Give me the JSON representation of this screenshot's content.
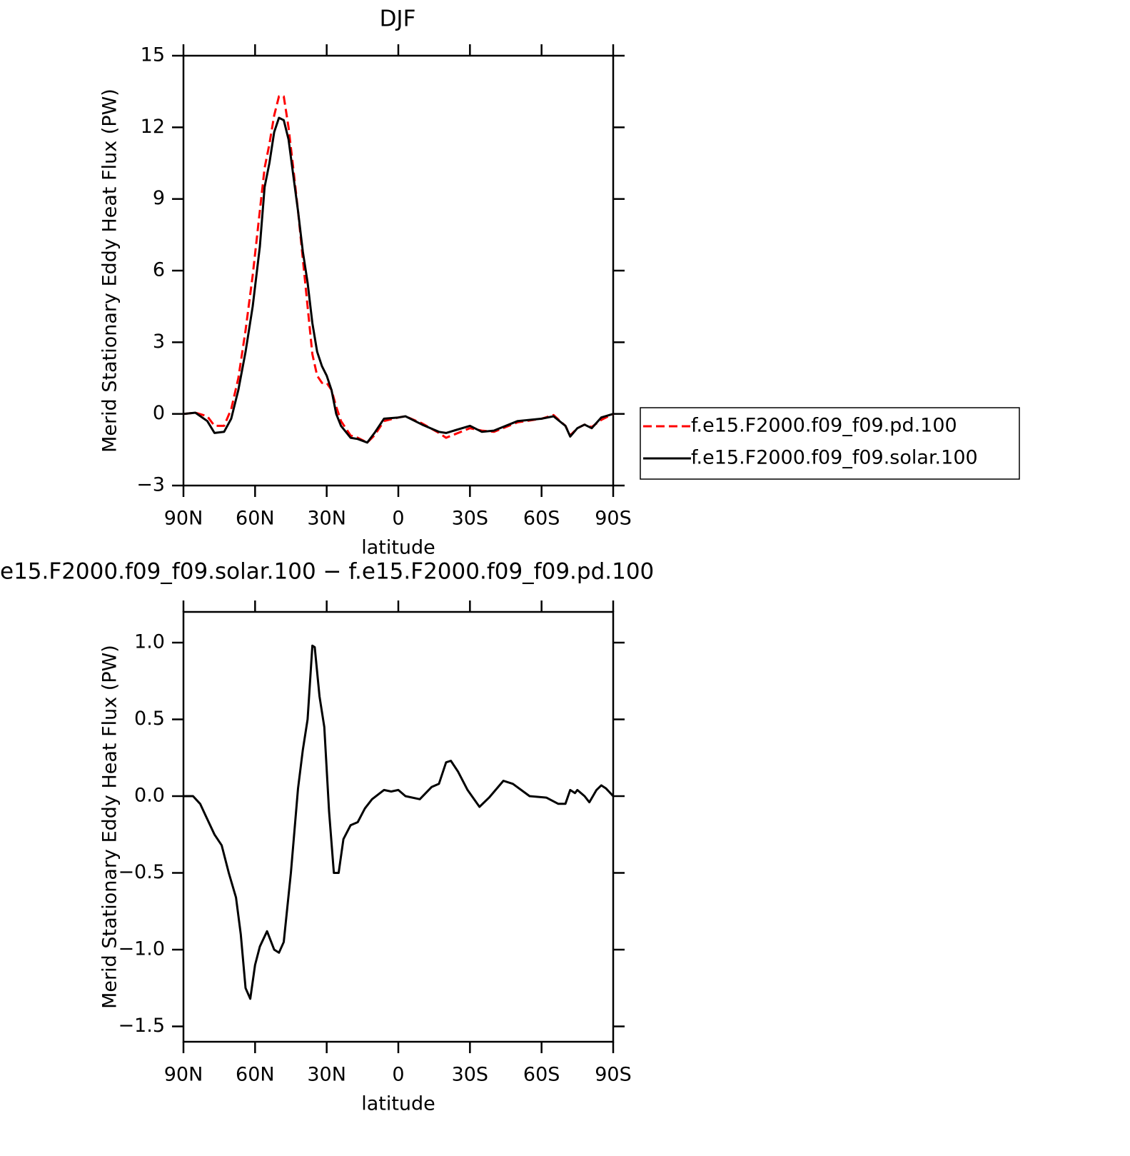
{
  "chart_data": [
    {
      "type": "line",
      "title": "DJF",
      "xlabel": "latitude",
      "ylabel": "Merid Stationary Eddy Heat Flux (PW)",
      "x": [
        90,
        85,
        80,
        77,
        73,
        70,
        67,
        64,
        61,
        58,
        56,
        54,
        52,
        50,
        48,
        46,
        44,
        42,
        40,
        38,
        36,
        34,
        32,
        30,
        28,
        26,
        24,
        20,
        17,
        13,
        10,
        6,
        0,
        -3,
        -10,
        -17,
        -20,
        -30,
        -35,
        -40,
        -50,
        -60,
        -65,
        -70,
        -72,
        -75,
        -78,
        -81,
        -85,
        -90
      ],
      "series": [
        {
          "name": "f.e15.F2000.f09_f09.pd.100",
          "color": "#ff0000",
          "line_style": "dashed",
          "values": [
            0,
            0.05,
            -0.1,
            -0.5,
            -0.5,
            0.2,
            1.5,
            3.5,
            5.8,
            8.5,
            10.3,
            11.3,
            12.5,
            13.3,
            13.3,
            12.0,
            10.3,
            8.5,
            6.5,
            4.5,
            2.5,
            1.6,
            1.3,
            1.3,
            1.0,
            0.3,
            -0.3,
            -0.9,
            -1.0,
            -1.2,
            -0.9,
            -0.3,
            -0.15,
            -0.1,
            -0.4,
            -0.8,
            -1.0,
            -0.6,
            -0.7,
            -0.75,
            -0.35,
            -0.2,
            -0.05,
            -0.5,
            -0.9,
            -0.6,
            -0.45,
            -0.55,
            -0.25,
            0
          ]
        },
        {
          "name": "f.e15.F2000.f09_f09.solar.100",
          "color": "#000000",
          "line_style": "solid",
          "values": [
            0,
            0.05,
            -0.3,
            -0.8,
            -0.75,
            -0.2,
            1.0,
            2.6,
            4.5,
            7.0,
            9.5,
            10.5,
            11.8,
            12.4,
            12.3,
            11.5,
            10.0,
            8.5,
            6.8,
            5.5,
            3.8,
            2.6,
            2.0,
            1.6,
            1.0,
            0.0,
            -0.5,
            -1.0,
            -1.05,
            -1.2,
            -0.8,
            -0.2,
            -0.15,
            -0.1,
            -0.45,
            -0.75,
            -0.8,
            -0.5,
            -0.75,
            -0.7,
            -0.3,
            -0.2,
            -0.1,
            -0.5,
            -0.95,
            -0.6,
            -0.45,
            -0.6,
            -0.15,
            0
          ]
        }
      ],
      "xlim": [
        90,
        -90
      ],
      "xticks": [
        {
          "value": 90,
          "label": "90N"
        },
        {
          "value": 60,
          "label": "60N"
        },
        {
          "value": 30,
          "label": "30N"
        },
        0,
        {
          "value": -30,
          "label": "30S"
        },
        {
          "value": -60,
          "label": "60S"
        },
        {
          "value": -90,
          "label": "90S"
        }
      ],
      "ylim": [
        -3,
        15
      ],
      "yticks": [
        {
          "value": -3,
          "label": "−3"
        },
        0,
        3,
        6,
        9,
        12,
        15
      ],
      "legend": "right"
    },
    {
      "type": "line",
      "title": "e15.F2000.f09_f09.solar.100 − f.e15.F2000.f09_f09.pd.100",
      "xlabel": "latitude",
      "ylabel": "Merid Stationary Eddy Heat Flux (PW)",
      "x": [
        90,
        86,
        83,
        80,
        77,
        74,
        71,
        68,
        66,
        64,
        62,
        60,
        58,
        55,
        52,
        50,
        48,
        45,
        42,
        40,
        38,
        36,
        35,
        33,
        31,
        29,
        27,
        25,
        23,
        20,
        17,
        14,
        11,
        6,
        3,
        0,
        -3,
        -9,
        -14,
        -17,
        -20,
        -22,
        -25,
        -29,
        -34,
        -38,
        -44,
        -48,
        -55,
        -62,
        -67,
        -70,
        -72,
        -74,
        -75,
        -78,
        -80,
        -83,
        -85,
        -87,
        -90
      ],
      "series": [
        {
          "color": "#000000",
          "line_style": "solid",
          "values": [
            0,
            0.0,
            -0.05,
            -0.15,
            -0.25,
            -0.32,
            -0.5,
            -0.66,
            -0.9,
            -1.25,
            -1.32,
            -1.1,
            -0.98,
            -0.88,
            -1.0,
            -1.02,
            -0.95,
            -0.5,
            0.05,
            0.3,
            0.5,
            0.98,
            0.97,
            0.65,
            0.45,
            -0.1,
            -0.5,
            -0.5,
            -0.28,
            -0.19,
            -0.17,
            -0.08,
            -0.02,
            0.04,
            0.03,
            0.04,
            0.0,
            -0.02,
            0.06,
            0.08,
            0.22,
            0.23,
            0.16,
            0.04,
            -0.07,
            -0.01,
            0.1,
            0.08,
            0.0,
            -0.01,
            -0.05,
            -0.05,
            0.04,
            0.02,
            0.04,
            0.0,
            -0.04,
            0.04,
            0.07,
            0.05,
            0
          ]
        }
      ],
      "xlim": [
        90,
        -90
      ],
      "xticks": [
        {
          "value": 90,
          "label": "90N"
        },
        {
          "value": 60,
          "label": "60N"
        },
        {
          "value": 30,
          "label": "30N"
        },
        0,
        {
          "value": -30,
          "label": "30S"
        },
        {
          "value": -60,
          "label": "60S"
        },
        {
          "value": -90,
          "label": "90S"
        }
      ],
      "ylim": [
        -1.6,
        1.2
      ],
      "yticks": [
        {
          "value": -1.5,
          "label": "−1.5"
        },
        {
          "value": -1.0,
          "label": "−1.0"
        },
        {
          "value": -0.5,
          "label": "−0.5"
        },
        {
          "value": 0,
          "label": "0.0"
        },
        {
          "value": 0.5,
          "label": "0.5"
        },
        {
          "value": 1.0,
          "label": "1.0"
        }
      ]
    }
  ]
}
